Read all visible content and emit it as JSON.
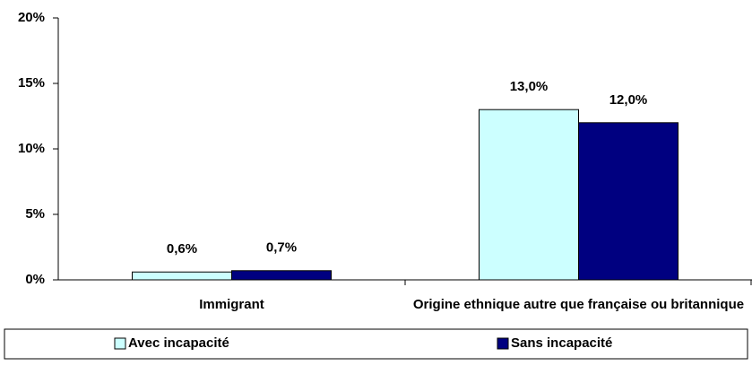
{
  "chart_data": {
    "type": "bar",
    "categories": [
      "Immigrant",
      "Origine ethnique autre que française ou britannique"
    ],
    "series": [
      {
        "name": "Avec incapacité",
        "color": "#ccffff",
        "values": [
          0.6,
          13.0
        ],
        "value_labels": [
          "0,6%",
          "13,0%"
        ]
      },
      {
        "name": "Sans incapacité",
        "color": "#000080",
        "values": [
          0.7,
          12.0
        ],
        "value_labels": [
          "0,7%",
          "12,0%"
        ]
      }
    ],
    "ylim": [
      0,
      20
    ],
    "yticks": [
      {
        "value": 0,
        "label": "0%"
      },
      {
        "value": 5,
        "label": "5%"
      },
      {
        "value": 10,
        "label": "10%"
      },
      {
        "value": 15,
        "label": "15%"
      },
      {
        "value": 20,
        "label": "20%"
      }
    ],
    "legend": "bottom"
  }
}
